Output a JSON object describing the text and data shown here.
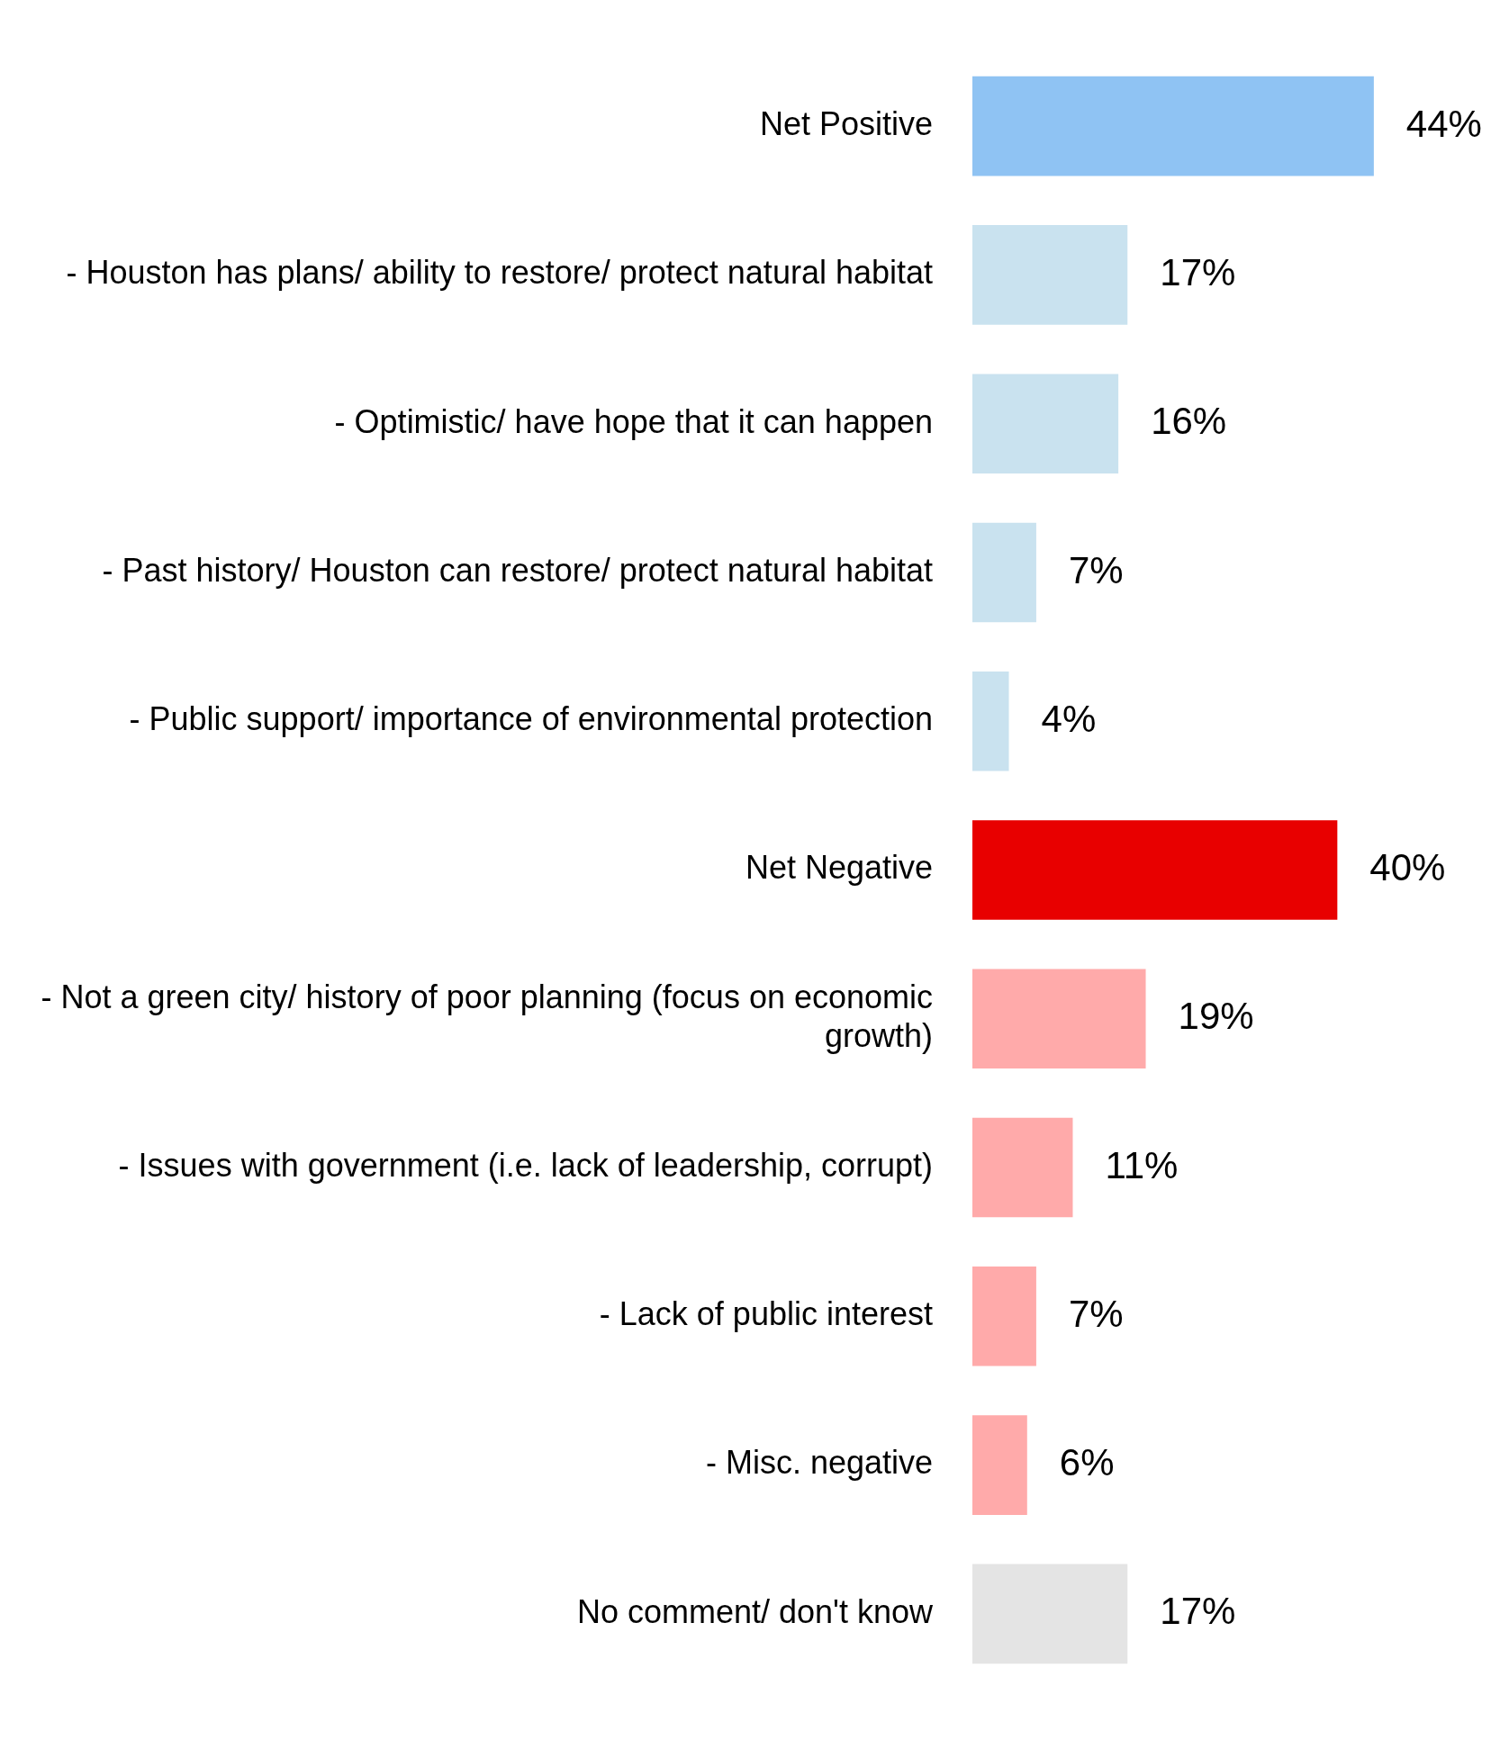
{
  "chart_data": {
    "type": "bar",
    "orientation": "horizontal",
    "categories": [
      "Net Positive",
      "- Houston has plans/ ability to restore/ protect natural habitat",
      "- Optimistic/ have hope that it can happen",
      "- Past history/ Houston can restore/ protect natural habitat",
      "- Public support/ importance of environmental protection",
      "Net Negative",
      "- Not a green city/ history of poor planning (focus on economic growth)",
      "- Issues with government (i.e. lack of leadership, corrupt)",
      "- Lack of public interest",
      "- Misc. negative",
      "No comment/ don't know"
    ],
    "values": [
      44,
      17,
      16,
      7,
      4,
      40,
      19,
      11,
      7,
      6,
      17
    ],
    "value_labels": [
      "44%",
      "17%",
      "16%",
      "7%",
      "4%",
      "40%",
      "19%",
      "11%",
      "7%",
      "6%",
      "17%"
    ],
    "colors": [
      "#8fc3f3",
      "#c9e2ef",
      "#c9e2ef",
      "#c9e2ef",
      "#c9e2ef",
      "#e80000",
      "#ffaaaa",
      "#ffaaaa",
      "#ffaaaa",
      "#ffaaaa",
      "#e4e4e4"
    ],
    "legend": false
  }
}
